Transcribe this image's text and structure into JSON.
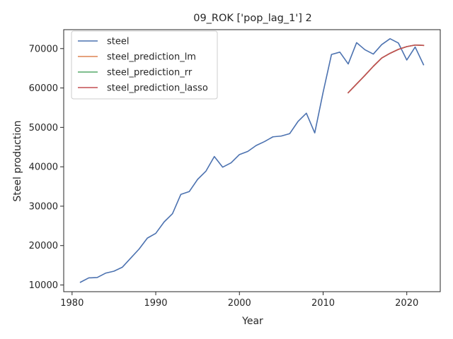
{
  "chart_data": {
    "type": "line",
    "title": "09_ROK ['pop_lag_1'] 2",
    "xlabel": "Year",
    "ylabel": "Steel production",
    "xlim": [
      1979,
      2024
    ],
    "ylim": [
      8300,
      74800
    ],
    "xticks": [
      1980,
      1990,
      2000,
      2010,
      2020
    ],
    "yticks": [
      10000,
      20000,
      30000,
      40000,
      50000,
      60000,
      70000
    ],
    "grid": false,
    "legend_position": "top-left",
    "series": [
      {
        "name": "steel",
        "color": "#4c72b0",
        "x": [
          1981,
          1982,
          1983,
          1984,
          1985,
          1986,
          1987,
          1988,
          1989,
          1990,
          1991,
          1992,
          1993,
          1994,
          1995,
          1996,
          1997,
          1998,
          1999,
          2000,
          2001,
          2002,
          2003,
          2004,
          2005,
          2006,
          2007,
          2008,
          2009,
          2010,
          2011,
          2012,
          2013,
          2014,
          2015,
          2016,
          2017,
          2018,
          2019,
          2020,
          2021,
          2022
        ],
        "y": [
          10700,
          11800,
          11900,
          13000,
          13500,
          14500,
          16800,
          19100,
          21900,
          23100,
          26000,
          28100,
          33000,
          33700,
          36800,
          38900,
          42600,
          39900,
          41000,
          43100,
          43900,
          45400,
          46400,
          47600,
          47800,
          48400,
          51500,
          53600,
          48600,
          58900,
          68500,
          69100,
          66100,
          71500,
          69700,
          68600,
          71000,
          72500,
          71400,
          67100,
          70400,
          65900
        ]
      },
      {
        "name": "steel_prediction_lm",
        "color": "#dd8452",
        "x": [
          2013,
          2014,
          2015,
          2016,
          2017,
          2018,
          2019,
          2020,
          2021,
          2022
        ],
        "y": [
          58800,
          61000,
          63200,
          65500,
          67600,
          68800,
          69800,
          70500,
          70900,
          70800
        ]
      },
      {
        "name": "steel_prediction_rr",
        "color": "#55a868",
        "x": [
          2013,
          2014,
          2015,
          2016,
          2017,
          2018,
          2019,
          2020,
          2021,
          2022
        ],
        "y": [
          58800,
          61000,
          63200,
          65500,
          67600,
          68800,
          69800,
          70500,
          70900,
          70800
        ]
      },
      {
        "name": "steel_prediction_lasso",
        "color": "#c44e52",
        "x": [
          2013,
          2014,
          2015,
          2016,
          2017,
          2018,
          2019,
          2020,
          2021,
          2022
        ],
        "y": [
          58800,
          61000,
          63200,
          65500,
          67600,
          68800,
          69800,
          70500,
          70900,
          70800
        ]
      }
    ]
  }
}
